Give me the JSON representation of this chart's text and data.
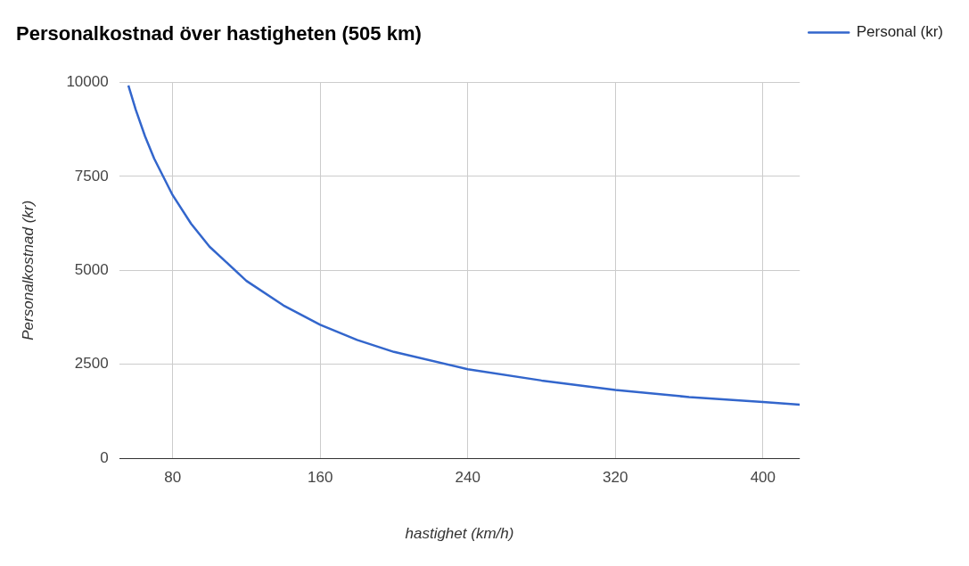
{
  "chart_data": {
    "type": "line",
    "title": "Personalkostnad över hastigheten (505 km)",
    "xlabel": "hastighet (km/h)",
    "ylabel": "Personalkostnad (kr)",
    "series": [
      {
        "name": "Personal (kr)",
        "color": "#3366cc",
        "x": [
          56,
          60,
          65,
          70,
          80,
          90,
          100,
          120,
          140,
          160,
          180,
          200,
          240,
          280,
          320,
          360,
          400,
          420
        ],
        "values": [
          9920,
          9270,
          8570,
          7970,
          7000,
          6240,
          5630,
          4720,
          4070,
          3550,
          3150,
          2830,
          2370,
          2070,
          1820,
          1630,
          1500,
          1430
        ]
      }
    ],
    "xlim": [
      51,
      420
    ],
    "xticks": [
      80,
      160,
      240,
      320,
      400
    ],
    "ylim": [
      0,
      10000
    ],
    "yticks": [
      0,
      2500,
      5000,
      7500,
      10000
    ],
    "grid": true,
    "legend": "top right",
    "marker": "none",
    "line_style": "solid"
  }
}
